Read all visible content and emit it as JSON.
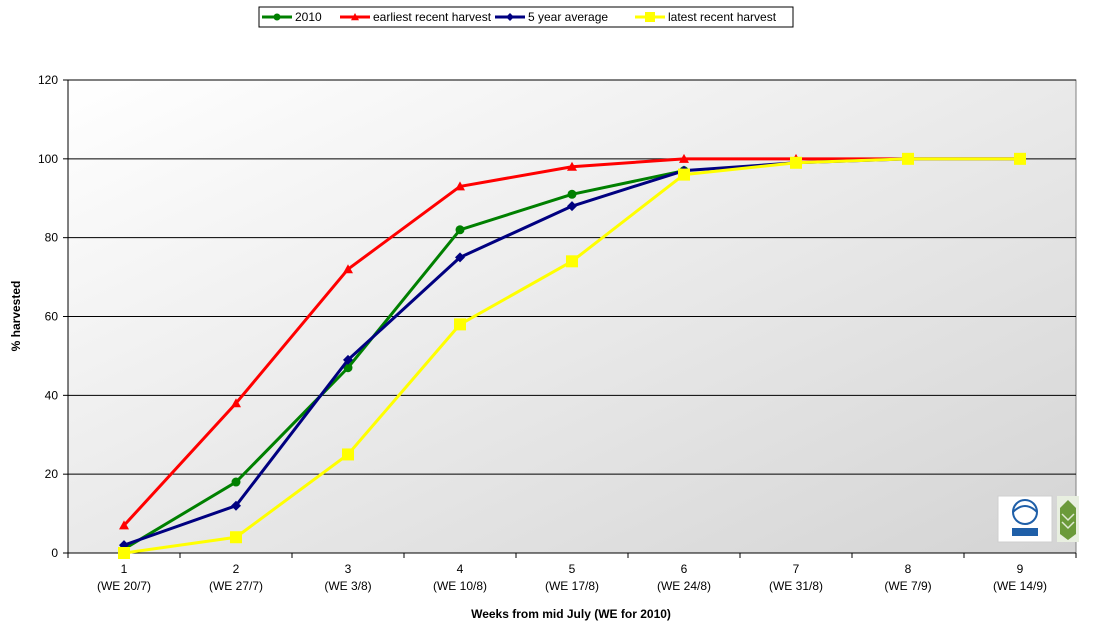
{
  "chart_data": {
    "type": "line",
    "title": "",
    "xlabel": "Weeks from mid July (WE for 2010)",
    "ylabel": "% harvested",
    "ylim": [
      0,
      120
    ],
    "yticks": [
      0,
      20,
      40,
      60,
      80,
      100,
      120
    ],
    "grid": true,
    "legend_position": "top",
    "categories": [
      {
        "week": "1",
        "date": "(WE 20/7)"
      },
      {
        "week": "2",
        "date": "(WE 27/7)"
      },
      {
        "week": "3",
        "date": "(WE 3/8)"
      },
      {
        "week": "4",
        "date": "(WE 10/8)"
      },
      {
        "week": "5",
        "date": "(WE 17/8)"
      },
      {
        "week": "6",
        "date": "(WE 24/8)"
      },
      {
        "week": "7",
        "date": "(WE 31/8)"
      },
      {
        "week": "8",
        "date": "(WE 7/9)"
      },
      {
        "week": "9",
        "date": "(WE 14/9)"
      }
    ],
    "series": [
      {
        "name": "2010",
        "color": "#008000",
        "marker": "circle",
        "values": [
          1,
          18,
          47,
          82,
          91,
          97,
          null,
          null,
          null
        ]
      },
      {
        "name": "earliest recent harvest",
        "color": "#ff0000",
        "marker": "triangle",
        "values": [
          7,
          38,
          72,
          93,
          98,
          100,
          100,
          100,
          100
        ]
      },
      {
        "name": "5 year average",
        "color": "#000080",
        "marker": "diamond",
        "values": [
          2,
          12,
          49,
          75,
          88,
          97,
          99,
          100,
          100
        ]
      },
      {
        "name": "latest recent harvest",
        "color": "#ffff00",
        "marker": "square",
        "values": [
          0,
          4,
          25,
          58,
          74,
          96,
          99,
          100,
          100
        ]
      }
    ]
  }
}
